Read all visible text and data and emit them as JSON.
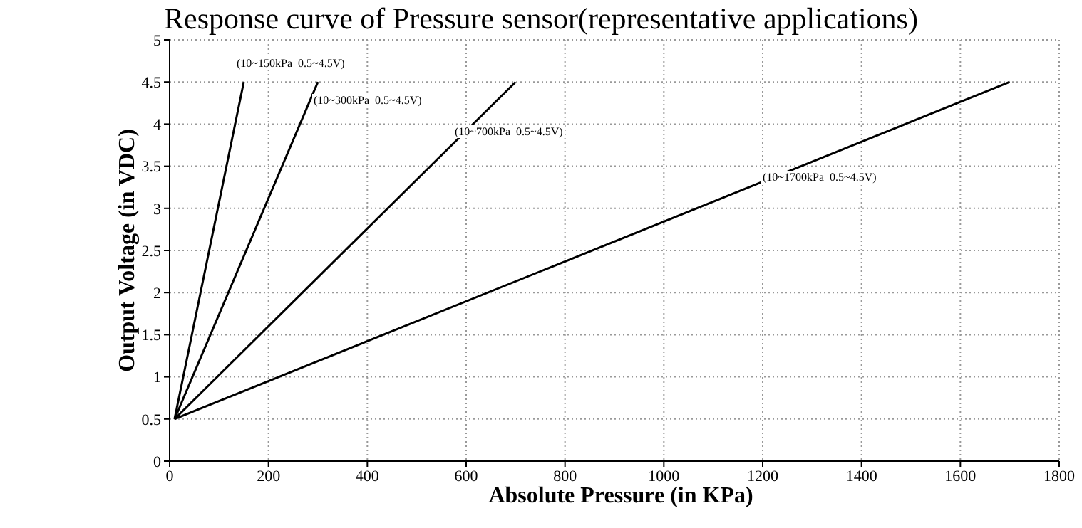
{
  "chart_data": {
    "type": "line",
    "title": "Response curve of Pressure sensor(representative applications)",
    "xlabel": "Absolute Pressure (in KPa)",
    "ylabel": "Output Voltage (in VDC)",
    "series": [
      {
        "color": "#000000",
        "x": [
          10,
          150
        ],
        "values": [
          0.5,
          4.5
        ]
      },
      {
        "color": "#000000",
        "x": [
          10,
          300
        ],
        "values": [
          0.5,
          4.5
        ]
      },
      {
        "color": "#000000",
        "x": [
          10,
          700
        ],
        "values": [
          0.5,
          4.5
        ]
      },
      {
        "color": "#000000",
        "x": [
          10,
          1700
        ],
        "values": [
          0.5,
          4.5
        ]
      }
    ],
    "annotations": [
      "(10~150kPa  0.5~4.5V)",
      "(10~300kPa  0.5~4.5V)",
      "(10~700kPa  0.5~4.5V)",
      "(10~1700kPa  0.5~4.5V)"
    ],
    "xlim": [
      0,
      1800
    ],
    "xticks": [
      0,
      200,
      400,
      600,
      800,
      1000,
      1200,
      1400,
      1600,
      1800
    ],
    "ylim": [
      0,
      5
    ],
    "yticks": [
      0,
      0.5,
      1,
      1.5,
      2,
      2.5,
      3,
      3.5,
      4,
      4.5,
      5
    ],
    "grid": true,
    "marker": "none",
    "line_style": "solid"
  }
}
